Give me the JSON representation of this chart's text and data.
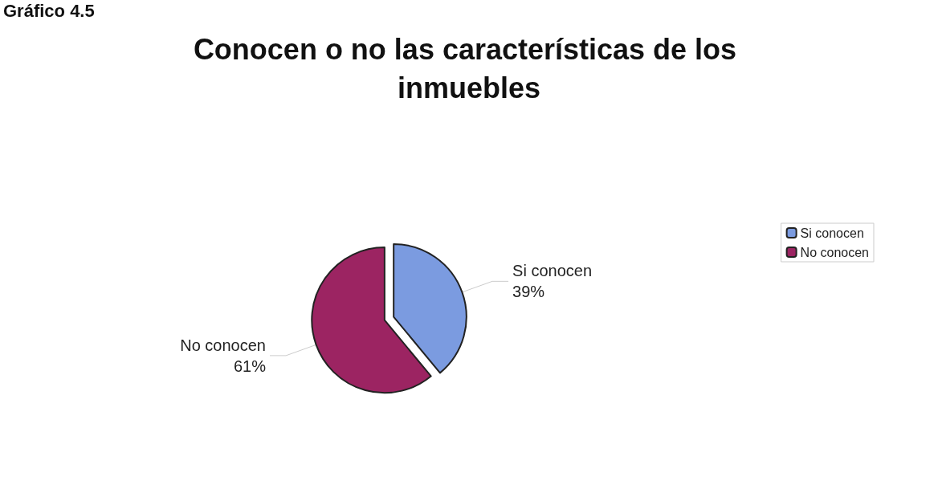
{
  "chart_data": {
    "type": "pie",
    "title": "Conocen o no las características de los inmuebles",
    "categories": [
      "Si conocen",
      "No conocen"
    ],
    "values": [
      39,
      61
    ],
    "colors": [
      "#7b9be0",
      "#9c2462"
    ],
    "value_labels": [
      "39%",
      "61%"
    ],
    "legend": "right",
    "annotations": [
      "Gráfico 4.5"
    ]
  }
}
